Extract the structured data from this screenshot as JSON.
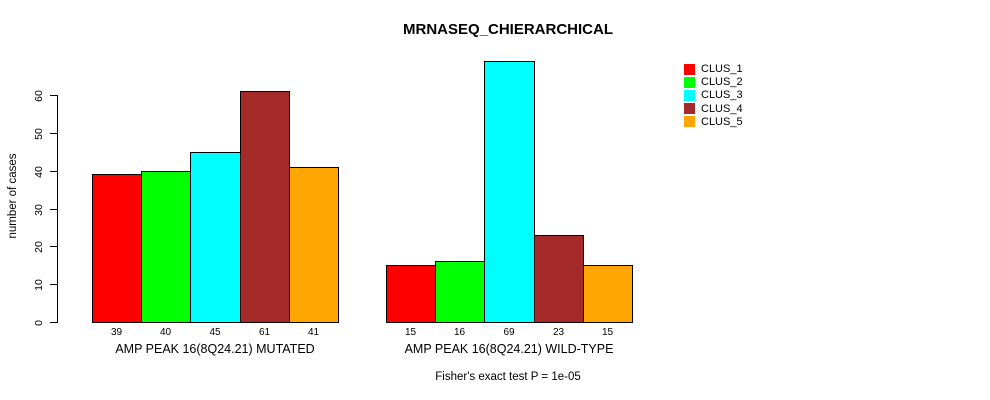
{
  "chart_data": {
    "type": "bar",
    "title": "MRNASEQ_CHIERARCHICAL",
    "ylabel": "number of cases",
    "xlabel": "",
    "ylim": [
      0,
      60
    ],
    "yticks": [
      0,
      10,
      20,
      30,
      40,
      50,
      60
    ],
    "grid": false,
    "legend_position": "right-top",
    "bar_value_labels_shown": true,
    "categories": [
      "AMP PEAK 16(8Q24.21) MUTATED",
      "AMP PEAK 16(8Q24.21) WILD-TYPE"
    ],
    "series": [
      {
        "name": "CLUS_1",
        "color": "#FF0000",
        "values": [
          39,
          15
        ]
      },
      {
        "name": "CLUS_2",
        "color": "#00FF00",
        "values": [
          40,
          16
        ]
      },
      {
        "name": "CLUS_3",
        "color": "#00FFFF",
        "values": [
          45,
          69
        ]
      },
      {
        "name": "CLUS_4",
        "color": "#A52A2A",
        "values": [
          61,
          23
        ]
      },
      {
        "name": "CLUS_5",
        "color": "#FFA500",
        "values": [
          41,
          15
        ]
      }
    ],
    "annotation": "Fisher's exact test P = 1e-05"
  }
}
